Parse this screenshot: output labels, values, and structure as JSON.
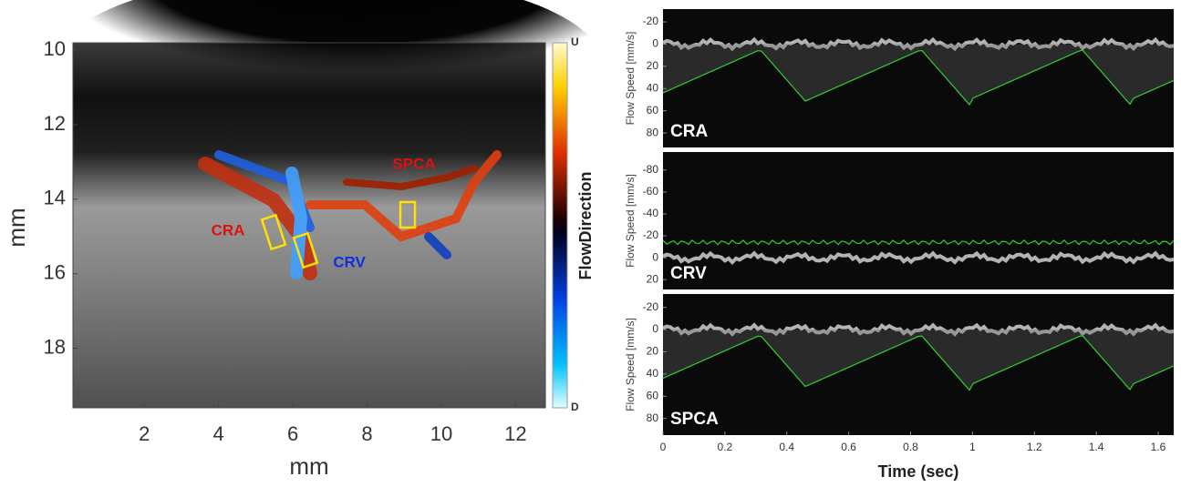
{
  "left_panel": {
    "xlim": [
      0.08,
      12.8
    ],
    "xticks": [
      2,
      4,
      6,
      8,
      10,
      12
    ],
    "ylim": [
      9.8,
      19.6
    ],
    "yticks": [
      10,
      12,
      14,
      16,
      18
    ],
    "xlabel": "mm",
    "ylabel": "mm",
    "colorbar": {
      "label": "FlowDirection",
      "top": "U",
      "bottom": "D"
    },
    "vessel_labels": [
      "CRA",
      "CRV",
      "SPCA"
    ]
  },
  "right_panels": {
    "xlim": [
      0,
      1.65
    ],
    "xticks": [
      0,
      0.2,
      0.4,
      0.6,
      0.8,
      1,
      1.2,
      1.4,
      1.6
    ],
    "xlabel": "Time (sec)",
    "panels": [
      {
        "name": "CRA",
        "ylabel": "Flow Speed [mm/s]",
        "ylim": [
          -31.5,
          93
        ],
        "yticks": [
          -20,
          0,
          20,
          40,
          60,
          80
        ]
      },
      {
        "name": "CRV",
        "ylabel": "Flow Speed [mm/s]",
        "ylim": [
          -96.5,
          29
        ],
        "yticks": [
          -80,
          -60,
          -40,
          -20,
          0,
          20
        ]
      },
      {
        "name": "SPCA",
        "ylabel": "Flow Speed [mm/s]",
        "ylim": [
          -32,
          95
        ],
        "yticks": [
          -20,
          0,
          20,
          40,
          60,
          80
        ]
      }
    ]
  }
}
